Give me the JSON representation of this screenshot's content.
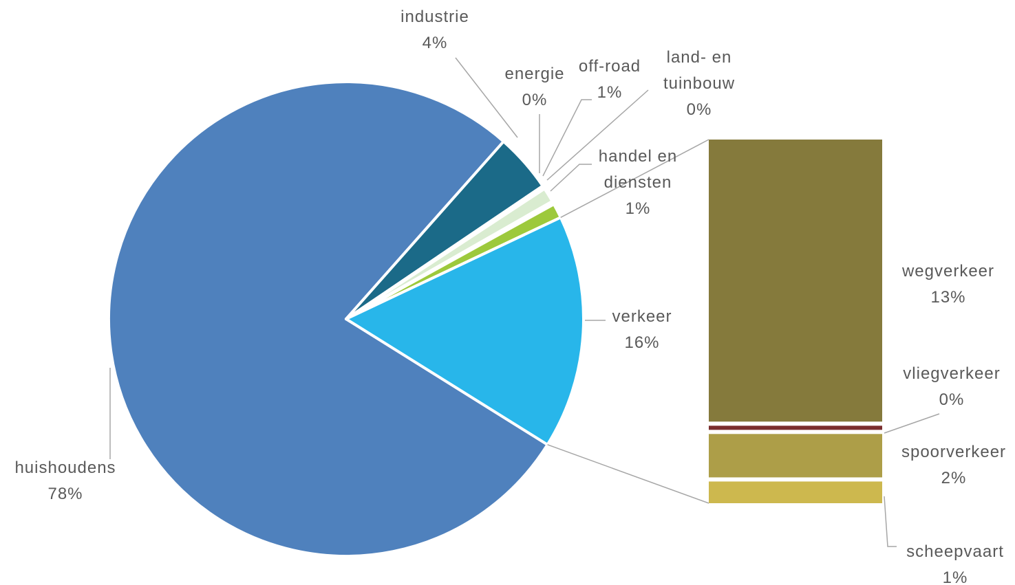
{
  "chart_data": {
    "type": "pie",
    "main": {
      "slices": [
        {
          "name": "huishoudens",
          "value": 78,
          "label": "78%",
          "color": "#4f81bd"
        },
        {
          "name": "industrie",
          "value": 4,
          "label": "4%",
          "color": "#1b6a88"
        },
        {
          "name": "energie",
          "value": 0,
          "label": "0%",
          "color": "#ffffff"
        },
        {
          "name": "off-road",
          "value": 1,
          "label": "1%",
          "color": "#d9ecd0"
        },
        {
          "name": "land- en tuinbouw",
          "name_lines": [
            "land- en",
            "tuinbouw"
          ],
          "value": 0,
          "label": "0%",
          "color": "#ffffff"
        },
        {
          "name": "handel en diensten",
          "name_lines": [
            "handel en",
            "diensten"
          ],
          "value": 1,
          "label": "1%",
          "color": "#9dc93c"
        },
        {
          "name": "verkeer",
          "value": 16,
          "label": "16%",
          "color": "#28b6ea"
        }
      ]
    },
    "breakdown_of": "verkeer",
    "breakdown": {
      "type": "stacked-bar",
      "segments": [
        {
          "name": "wegverkeer",
          "value": 13,
          "label": "13%",
          "color": "#857a3c"
        },
        {
          "name": "vliegverkeer",
          "value": 0,
          "label": "0%",
          "color": "#7a2e2e"
        },
        {
          "name": "spoorverkeer",
          "value": 2,
          "label": "2%",
          "color": "#ad9e48"
        },
        {
          "name": "scheepvaart",
          "value": 1,
          "label": "1%",
          "color": "#cdb84e"
        }
      ]
    }
  }
}
